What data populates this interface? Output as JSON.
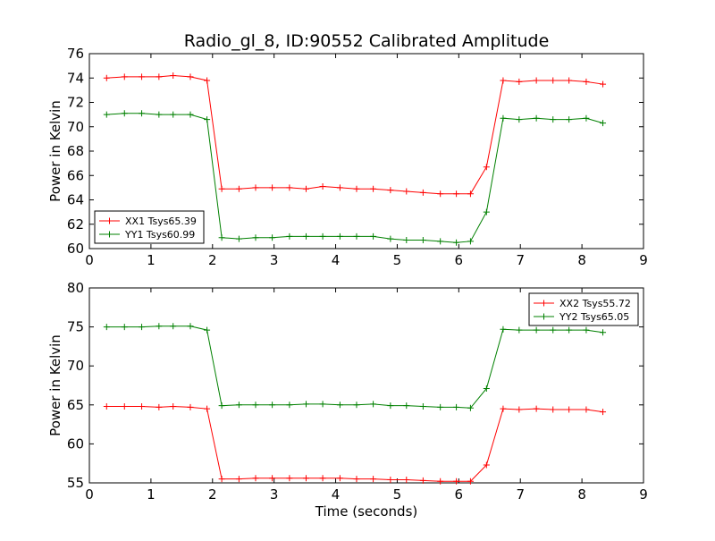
{
  "chart_data": [
    {
      "type": "line",
      "title": "Radio_gl_8, ID:90552 Calibrated Amplitude",
      "xlabel": "",
      "ylabel": "Power in Kelvin",
      "xlim": [
        0,
        9
      ],
      "ylim": [
        60,
        76
      ],
      "xticks": [
        "0",
        "1",
        "2",
        "3",
        "4",
        "5",
        "6",
        "7",
        "8",
        "9"
      ],
      "yticks": [
        "60",
        "62",
        "64",
        "66",
        "68",
        "70",
        "72",
        "74",
        "76"
      ],
      "grid": false,
      "legend_position": "lower-left",
      "x": [
        0.28,
        0.57,
        0.85,
        1.13,
        1.36,
        1.64,
        1.91,
        2.15,
        2.43,
        2.7,
        2.97,
        3.25,
        3.52,
        3.79,
        4.07,
        4.34,
        4.61,
        4.89,
        5.15,
        5.42,
        5.7,
        5.96,
        6.19,
        6.45,
        6.72,
        6.98,
        7.26,
        7.53,
        7.79,
        8.07,
        8.34
      ],
      "series": [
        {
          "name": "XX1 Tsys65.39",
          "color": "#ff0000",
          "values": [
            74.0,
            74.1,
            74.1,
            74.1,
            74.2,
            74.1,
            73.8,
            64.9,
            64.9,
            65.0,
            65.0,
            65.0,
            64.9,
            65.1,
            65.0,
            64.9,
            64.9,
            64.8,
            64.7,
            64.6,
            64.5,
            64.5,
            64.5,
            66.7,
            73.8,
            73.7,
            73.8,
            73.8,
            73.8,
            73.7,
            73.5
          ]
        },
        {
          "name": "YY1 Tsys60.99",
          "color": "#008000",
          "values": [
            71.0,
            71.1,
            71.1,
            71.0,
            71.0,
            71.0,
            70.6,
            60.9,
            60.8,
            60.9,
            60.9,
            61.0,
            61.0,
            61.0,
            61.0,
            61.0,
            61.0,
            60.8,
            60.7,
            60.7,
            60.6,
            60.5,
            60.6,
            63.0,
            70.7,
            70.6,
            70.7,
            70.6,
            70.6,
            70.7,
            70.3
          ]
        }
      ]
    },
    {
      "type": "line",
      "title": "",
      "xlabel": "Time (seconds)",
      "ylabel": "Power in Kelvin",
      "xlim": [
        0,
        9
      ],
      "ylim": [
        55,
        80
      ],
      "xticks": [
        "0",
        "1",
        "2",
        "3",
        "4",
        "5",
        "6",
        "7",
        "8",
        "9"
      ],
      "yticks": [
        "55",
        "60",
        "65",
        "70",
        "75",
        "80"
      ],
      "grid": false,
      "legend_position": "upper-right",
      "x": [
        0.28,
        0.57,
        0.85,
        1.13,
        1.36,
        1.64,
        1.91,
        2.15,
        2.43,
        2.7,
        2.97,
        3.25,
        3.52,
        3.79,
        4.07,
        4.34,
        4.61,
        4.89,
        5.15,
        5.42,
        5.7,
        5.96,
        6.19,
        6.45,
        6.72,
        6.98,
        7.26,
        7.53,
        7.79,
        8.07,
        8.34
      ],
      "series": [
        {
          "name": "XX2 Tsys55.72",
          "color": "#ff0000",
          "values": [
            64.8,
            64.8,
            64.8,
            64.7,
            64.8,
            64.7,
            64.5,
            55.5,
            55.5,
            55.6,
            55.6,
            55.6,
            55.6,
            55.6,
            55.6,
            55.5,
            55.5,
            55.4,
            55.4,
            55.3,
            55.2,
            55.2,
            55.2,
            57.3,
            64.5,
            64.4,
            64.5,
            64.4,
            64.4,
            64.4,
            64.1
          ]
        },
        {
          "name": "YY2 Tsys65.05",
          "color": "#008000",
          "values": [
            75.0,
            75.0,
            75.0,
            75.1,
            75.1,
            75.1,
            74.6,
            64.9,
            65.0,
            65.0,
            65.0,
            65.0,
            65.1,
            65.1,
            65.0,
            65.0,
            65.1,
            64.9,
            64.9,
            64.8,
            64.7,
            64.7,
            64.6,
            67.1,
            74.7,
            74.6,
            74.6,
            74.6,
            74.6,
            74.6,
            74.3
          ]
        }
      ]
    }
  ]
}
